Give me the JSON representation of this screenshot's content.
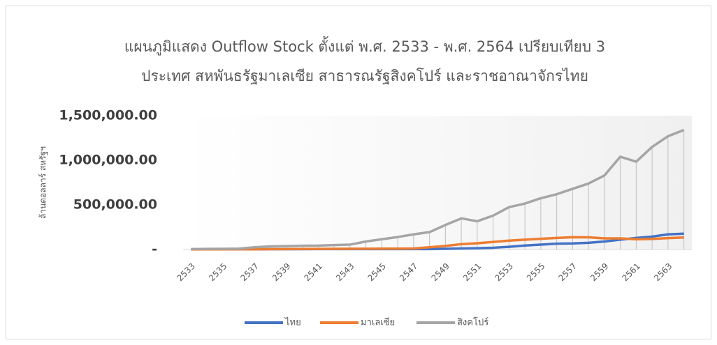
{
  "chart_data": {
    "type": "line",
    "title": [
      "แผนภูมิแสดง Outflow Stock ตั้งแต่ พ.ศ. 2533 - พ.ศ. 2564 เปรียบเทียบ 3",
      "ประเทศ สหพันธรัฐมาเลเซีย สาธารณรัฐสิงคโปร์ และราชอาณาจักรไทย"
    ],
    "y_label": "ล้านดอลลาร์ สหรัฐฯ",
    "categories": [
      "2533",
      null,
      "2535",
      null,
      "2537",
      null,
      "2539",
      null,
      "2541",
      null,
      "2543",
      null,
      "2545",
      null,
      "2547",
      null,
      "2549",
      null,
      "2551",
      null,
      "2553",
      null,
      "2555",
      null,
      "2557",
      null,
      "2559",
      null,
      "2561",
      null,
      "2563",
      null
    ],
    "series": [
      {
        "name": "ไทย",
        "color": "#4472c4",
        "values": [
          2000,
          2000,
          2500,
          3000,
          3000,
          3500,
          4000,
          4000,
          4500,
          4500,
          5000,
          5000,
          5000,
          5000,
          5000,
          5000,
          8000,
          12000,
          15000,
          20000,
          30000,
          45000,
          55000,
          65000,
          68000,
          75000,
          90000,
          110000,
          130000,
          145000,
          170000,
          178000
        ]
      },
      {
        "name": "มาเลเซีย",
        "color": "#ed7d31",
        "values": [
          1000,
          1500,
          2000,
          2500,
          3000,
          4000,
          5000,
          6000,
          7000,
          8000,
          9000,
          9000,
          10000,
          10000,
          12000,
          25000,
          40000,
          60000,
          70000,
          85000,
          100000,
          110000,
          120000,
          130000,
          138000,
          137000,
          125000,
          125000,
          115000,
          118000,
          128000,
          135000
        ]
      },
      {
        "name": "สิงคโปร์",
        "color": "#a5a5a5",
        "values": [
          5000,
          7000,
          8000,
          10000,
          25000,
          35000,
          38000,
          42000,
          44000,
          50000,
          55000,
          90000,
          115000,
          140000,
          170000,
          195000,
          275000,
          349000,
          317000,
          380000,
          475000,
          515000,
          575000,
          620000,
          680000,
          740000,
          830000,
          1040000,
          985000,
          1150000,
          1270000,
          1340000
        ]
      }
    ],
    "ylim": [
      0,
      1500000
    ],
    "yticks": [
      {
        "value": 0,
        "label": "-"
      },
      {
        "value": 500000,
        "label": "500,000.00"
      },
      {
        "value": 1000000,
        "label": "1,000,000.00"
      },
      {
        "value": 1500000,
        "label": "1,500,000.00"
      }
    ],
    "drop_lines": true,
    "legend": "bottom"
  }
}
